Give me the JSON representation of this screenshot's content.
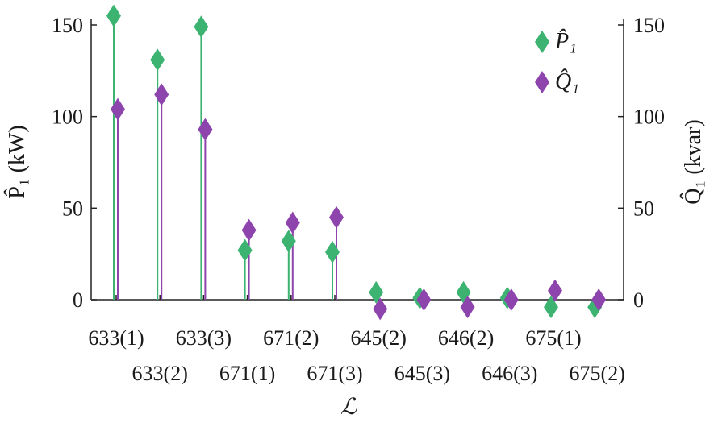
{
  "chart_data": {
    "type": "stem",
    "categories": [
      "633(1)",
      "633(2)",
      "633(3)",
      "671(1)",
      "671(2)",
      "671(3)",
      "645(2)",
      "645(3)",
      "646(2)",
      "646(3)",
      "675(1)",
      "675(2)"
    ],
    "xlabel": "ℒ",
    "ylabel_left": "P̂₁ (kW)",
    "ylabel_right": "Q̂₁ (kvar)",
    "ylim": [
      0,
      150
    ],
    "yticks": [
      0,
      50,
      100,
      150
    ],
    "legend_position": "top-right",
    "series": [
      {
        "name": "P̂₁",
        "axis": "left",
        "color": "#3cb371",
        "marker": "diamond",
        "values": [
          155,
          131,
          149,
          27,
          32,
          26,
          4,
          1,
          4,
          1,
          -4,
          -4
        ]
      },
      {
        "name": "Q̂₁",
        "axis": "right",
        "color": "#8e44ad",
        "marker": "diamond",
        "values": [
          104,
          112,
          93,
          38,
          42,
          45,
          -5,
          0,
          -4,
          0,
          5,
          0
        ]
      }
    ]
  }
}
